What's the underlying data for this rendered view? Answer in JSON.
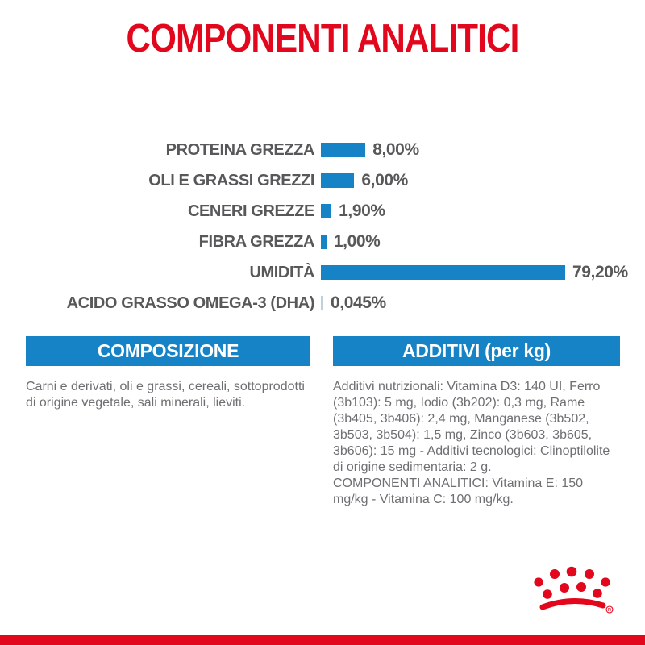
{
  "page": {
    "title": "COMPONENTI ANALITICI",
    "colors": {
      "brand_red": "#e2071c",
      "brand_blue": "#1583c5",
      "light_blue_tick": "#bdd2e0",
      "dark_gray_text": "#58585a",
      "body_gray_text": "#6e6f72"
    }
  },
  "chart_data": {
    "type": "bar",
    "orientation": "horizontal",
    "unit": "%",
    "grid": false,
    "legend": false,
    "bar_color": "#1583c5",
    "categories": [
      "PROTEINA GREZZA",
      "OLI E GRASSI GREZZI",
      "CENERI GREZZE",
      "FIBRA GREZZA",
      "UMIDITÀ",
      "ACIDO GRASSO OMEGA-3 (DHA)"
    ],
    "values": [
      8.0,
      6.0,
      1.9,
      1.0,
      79.2,
      0.045
    ],
    "rows": [
      {
        "label": "PROTEINA GREZZA",
        "value": 8.0,
        "display": "8,00%"
      },
      {
        "label": "OLI E GRASSI GREZZI",
        "value": 6.0,
        "display": "6,00%"
      },
      {
        "label": "CENERI GREZZE",
        "value": 1.9,
        "display": "1,90%"
      },
      {
        "label": "FIBRA GREZZA",
        "value": 1.0,
        "display": "1,00%"
      },
      {
        "label": "UMIDITÀ",
        "value": 79.2,
        "display": "79,20%"
      },
      {
        "label": "ACIDO GRASSO OMEGA-3 (DHA)",
        "value": 0.045,
        "display": "0,045%"
      }
    ]
  },
  "sections": {
    "composizione": {
      "header": "COMPOSIZIONE",
      "body": "Carni e derivati, oli e grassi, cereali, sottoprodotti di origine vegetale, sali minerali, lieviti."
    },
    "additivi": {
      "header": "ADDITIVI (per kg)",
      "nutritional": "Additivi nutrizionali: Vitamina D3: 140 UI, Ferro (3b103): 5 mg, Iodio (3b202): 0,3 mg, Rame (3b405, 3b406): 2,4 mg, Manganese (3b502, 3b503, 3b504): 1,5 mg, Zinco (3b603, 3b605, 3b606): 15 mg - Additivi tecnologici: Clinoptilolite di origine sedimentaria: 2 g.",
      "analytical": "COMPONENTI ANALITICI: Vitamina E: 150 mg/kg - Vitamina C: 100 mg/kg."
    }
  },
  "footer": {
    "logo": "royal-canin-crown"
  }
}
